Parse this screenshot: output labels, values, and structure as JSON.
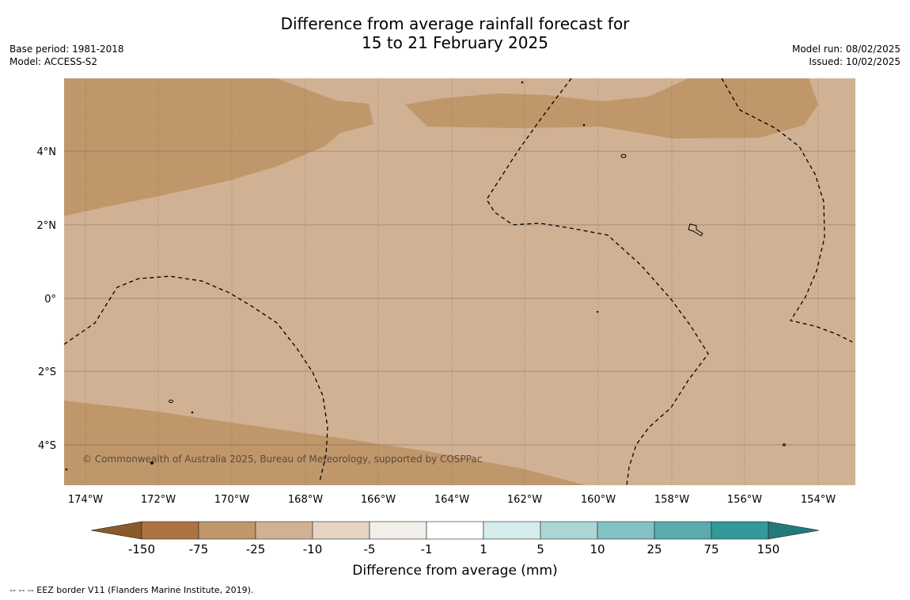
{
  "header": {
    "title_line1": "Difference from average rainfall forecast for",
    "title_line2": "15 to 21 February 2025",
    "base_period": "Base period: 1981-2018",
    "model": "Model: ACCESS-S2",
    "model_run": "Model run: 08/02/2025",
    "issued": "Issued: 10/02/2025"
  },
  "map": {
    "copyright": "© Commonwealth of Australia 2025, Bureau of Meteorology, supported by COSPPac",
    "lat_labels": [
      "4°N",
      "2°N",
      "0°",
      "2°S",
      "4°S"
    ],
    "lon_labels": [
      "174°W",
      "172°W",
      "170°W",
      "168°W",
      "166°W",
      "164°W",
      "162°W",
      "160°W",
      "158°W",
      "156°W",
      "154°W"
    ],
    "colors": {
      "background_category": "#d1b193",
      "darker_category": "#c0976b",
      "gridline": "#7a6550"
    }
  },
  "legend": {
    "title": "Difference from average (mm)",
    "tick_labels": [
      "-150",
      "-75",
      "-25",
      "-10",
      "-5",
      "-1",
      "1",
      "5",
      "10",
      "25",
      "75",
      "150"
    ],
    "colors": [
      "#ad7442",
      "#c0976b",
      "#d1b193",
      "#e6d5c4",
      "#f2efea",
      "#ffffff",
      "#d6ecec",
      "#acd6d6",
      "#83c2c2",
      "#5aabab",
      "#339999",
      "#1f7575"
    ],
    "extend_low_color": "#8a5a2b",
    "extend_high_color": "#237a7a"
  },
  "footer": {
    "eez_note": "--  --  -- EEZ border V11 (Flanders Marine Institute, 2019)."
  }
}
